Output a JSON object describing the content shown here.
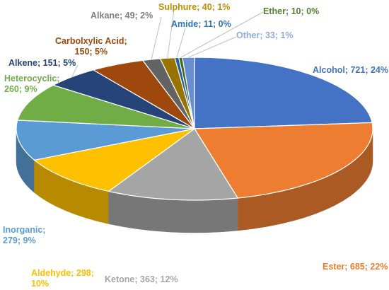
{
  "chart_data": {
    "type": "pie",
    "style": "3d",
    "slices": [
      {
        "label": "Alcohol",
        "value": 721,
        "percent": 24,
        "color": "#4472C4",
        "text": "Alcohol; 721; 24%"
      },
      {
        "label": "Ester",
        "value": 685,
        "percent": 22,
        "color": "#ED7D31",
        "text": "Ester; 685; 22%"
      },
      {
        "label": "Ketone",
        "value": 363,
        "percent": 12,
        "color": "#A5A5A5",
        "text": "Ketone; 363; 12%"
      },
      {
        "label": "Aldehyde",
        "value": 298,
        "percent": 10,
        "color": "#FFC000",
        "text": "Aldehyde; 298;",
        "text2": "10%"
      },
      {
        "label": "Inorganic",
        "value": 279,
        "percent": 9,
        "color": "#5B9BD5",
        "text": "Inorganic;",
        "text2": "279; 9%"
      },
      {
        "label": "Heterocyclic",
        "value": 260,
        "percent": 9,
        "color": "#70AD47",
        "text": "Heterocyclic;",
        "text2": "260; 9%"
      },
      {
        "label": "Alkene",
        "value": 151,
        "percent": 5,
        "color": "#264478",
        "text": "Alkene; 151; 5%"
      },
      {
        "label": "Carbolxylic Acid",
        "value": 150,
        "percent": 5,
        "color": "#9E480E",
        "text": "Carbolxylic Acid;",
        "text2": "150; 5%"
      },
      {
        "label": "Alkane",
        "value": 49,
        "percent": 2,
        "color": "#636363",
        "text": "Alkane; 49; 2%"
      },
      {
        "label": "Sulphure",
        "value": 40,
        "percent": 1,
        "color": "#997300",
        "text": "Sulphure; 40; 1%"
      },
      {
        "label": "Amide",
        "value": 11,
        "percent": 0,
        "color": "#255E91",
        "text": "Amide; 11; 0%"
      },
      {
        "label": "Ether",
        "value": 10,
        "percent": 0,
        "color": "#43682B",
        "text": "Ether; 10; 0%"
      },
      {
        "label": "Other",
        "value": 33,
        "percent": 1,
        "color": "#698ED0",
        "text": "Other; 33; 1%"
      }
    ],
    "legend": "none",
    "data_labels": "outside"
  }
}
